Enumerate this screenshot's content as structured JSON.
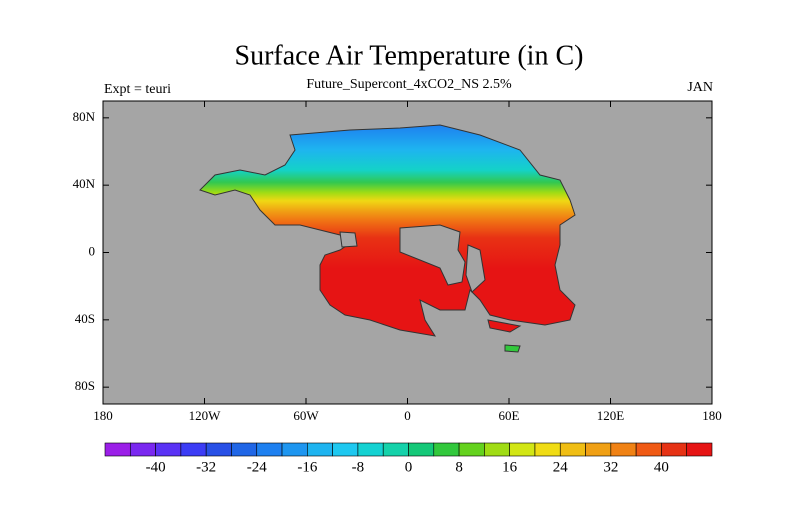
{
  "chart_data": {
    "type": "contour-map",
    "title": "Surface Air Temperature (in C)",
    "subtitle": "Future_Supercont_4xCO2_NS 2.5%",
    "left_label": "Expt = teuri",
    "right_label": "JAN",
    "xlim": [
      -180,
      180
    ],
    "ylim": [
      -90,
      90
    ],
    "xticks": [
      {
        "value": -180,
        "label": "180"
      },
      {
        "value": -120,
        "label": "120W"
      },
      {
        "value": -60,
        "label": "60W"
      },
      0,
      {
        "value": 60,
        "label": "60E"
      },
      {
        "value": 120,
        "label": "120E"
      },
      {
        "value": 180,
        "label": "180"
      }
    ],
    "yticks": [
      {
        "value": 80,
        "label": "80N"
      },
      {
        "value": 40,
        "label": "40N"
      },
      0,
      {
        "value": -40,
        "label": "40S"
      },
      {
        "value": -80,
        "label": "80S"
      }
    ],
    "colorbar": {
      "lim": [
        -48,
        48
      ],
      "ticks": [
        -40,
        -32,
        -24,
        -16,
        -8,
        0,
        8,
        16,
        24,
        32,
        40
      ],
      "colors": [
        "#9b1fe8",
        "#7a28f0",
        "#5a32f5",
        "#3c3cf5",
        "#2850e6",
        "#2066e6",
        "#1e80f0",
        "#1e96f0",
        "#1eb4f0",
        "#1ec8f0",
        "#14d2d2",
        "#14d2aa",
        "#14c878",
        "#32c83c",
        "#64d21e",
        "#a0dc14",
        "#d2e614",
        "#f0dc14",
        "#f0be14",
        "#f0a014",
        "#f08214",
        "#f05a14",
        "#e63214",
        "#e61414"
      ]
    }
  }
}
